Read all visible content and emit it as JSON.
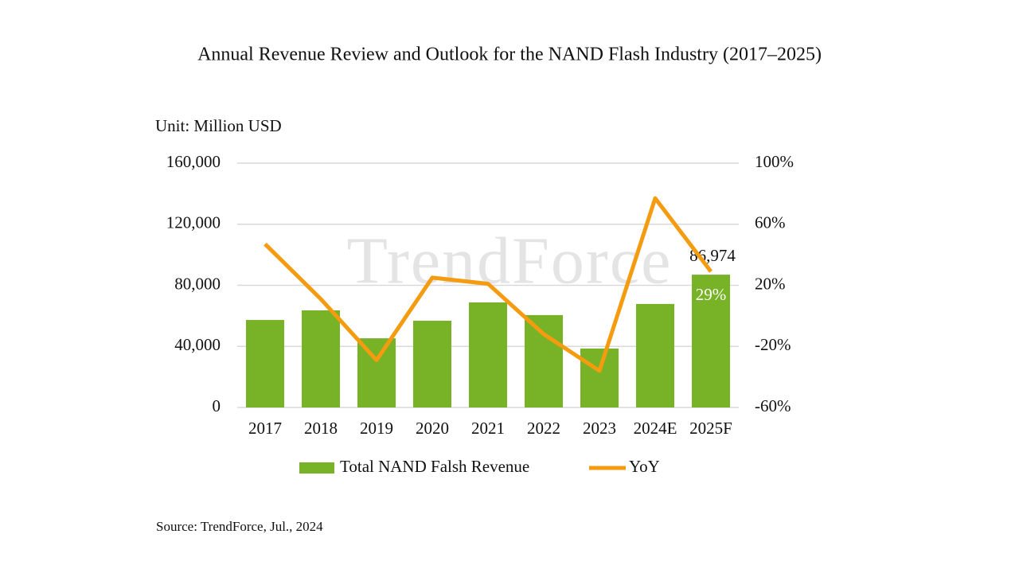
{
  "chart_data": {
    "type": "bar",
    "title": "Annual Revenue Review and Outlook for the NAND Flash Industry (2017–2025)",
    "y_axis_label": "Unit: Million USD",
    "source": "Source: TrendForce, Jul., 2024",
    "watermark": "TrendForce",
    "categories": [
      "2017",
      "2018",
      "2019",
      "2020",
      "2021",
      "2022",
      "2023",
      "2024E",
      "2025F"
    ],
    "series": [
      {
        "name": "Total NAND Falsh Revenue",
        "type": "bar",
        "color": "#77b227",
        "values": [
          57300,
          63600,
          45300,
          56800,
          68800,
          60500,
          38600,
          67800,
          86974
        ],
        "value_labels": [
          null,
          null,
          null,
          null,
          null,
          null,
          null,
          null,
          "86,974"
        ]
      },
      {
        "name": "YoY",
        "type": "line",
        "axis": "y2",
        "color": "#f59b10",
        "values": [
          47,
          11,
          -29,
          25,
          21,
          -12,
          -36,
          77,
          29
        ],
        "value_labels": [
          null,
          null,
          null,
          null,
          null,
          null,
          null,
          null,
          "29%"
        ]
      }
    ],
    "ylim": [
      0,
      160000
    ],
    "yticks": [
      0,
      {
        "value": 40000,
        "label": "40,000"
      },
      {
        "value": 80000,
        "label": "80,000"
      },
      {
        "value": 120000,
        "label": "120,000"
      },
      {
        "value": 160000,
        "label": "160,000"
      }
    ],
    "y2lim": [
      -60,
      100
    ],
    "y2ticks": [
      {
        "value": -60,
        "label": "-60%"
      },
      {
        "value": -20,
        "label": "-20%"
      },
      {
        "value": 20,
        "label": "20%"
      },
      {
        "value": 60,
        "label": "60%"
      },
      {
        "value": 100,
        "label": "100%"
      }
    ],
    "grid": true,
    "legend": "bottom"
  }
}
